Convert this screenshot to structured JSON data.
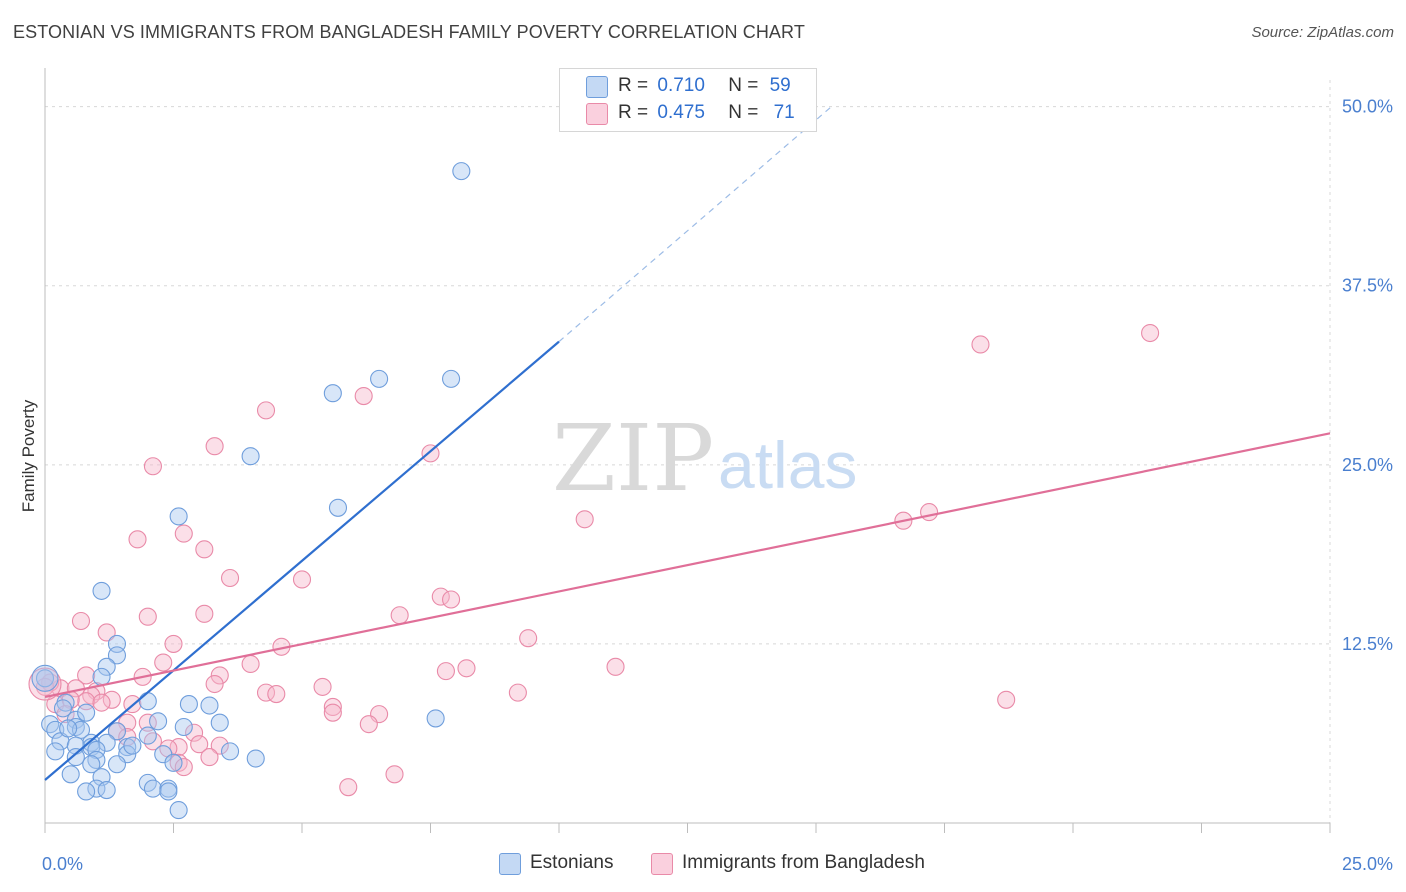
{
  "title": "ESTONIAN VS IMMIGRANTS FROM BANGLADESH FAMILY POVERTY CORRELATION CHART",
  "source": "Source: ZipAtlas.com",
  "watermark": {
    "zip": "ZIP",
    "atlas": "atlas"
  },
  "colors": {
    "blue_fill": "#a9c8f0",
    "blue_stroke": "#6f9edc",
    "blue_line": "#2f6fcf",
    "pink_fill": "#f6b8cb",
    "pink_stroke": "#e98aa8",
    "pink_line": "#e06f98",
    "grid": "#d8d8d8",
    "tick_label": "#4a7fcf"
  },
  "legend": {
    "rows": [
      {
        "r_label": "R =",
        "r_value": "0.710",
        "n_label": "N =",
        "n_value": "59",
        "color": "#a9c8f0"
      },
      {
        "r_label": "R =",
        "r_value": "0.475",
        "n_label": "N =",
        "n_value": "71",
        "color": "#f6b8cb"
      }
    ]
  },
  "bottom_legend": [
    {
      "label": "Estonians",
      "color": "#a9c8f0"
    },
    {
      "label": "Immigrants from Bangladesh",
      "color": "#f6b8cb"
    }
  ],
  "chart_data": {
    "type": "scatter",
    "title": "ESTONIAN VS IMMIGRANTS FROM BANGLADESH FAMILY POVERTY CORRELATION CHART",
    "xlabel": "",
    "ylabel": "Family Poverty",
    "xlim": [
      0,
      25
    ],
    "ylim": [
      0,
      52
    ],
    "x_tick_labels": [
      {
        "value": 0,
        "label": "0.0%"
      },
      {
        "value": 25,
        "label": "25.0%"
      }
    ],
    "y_tick_labels": [
      {
        "value": 12.5,
        "label": "12.5%"
      },
      {
        "value": 25,
        "label": "25.0%"
      },
      {
        "value": 37.5,
        "label": "37.5%"
      },
      {
        "value": 50,
        "label": "50.0%"
      }
    ],
    "grid": true,
    "legend_position": "top-center",
    "series": [
      {
        "name": "Estonians",
        "R": 0.71,
        "N": 59,
        "trendline": {
          "x": [
            0,
            10
          ],
          "y": [
            3,
            33.6
          ],
          "dashed_extension_to": [
            15.3,
            50
          ]
        },
        "points": [
          [
            8.1,
            45.5
          ],
          [
            6.5,
            31
          ],
          [
            5.6,
            30
          ],
          [
            7.9,
            31
          ],
          [
            4,
            25.6
          ],
          [
            5.7,
            22
          ],
          [
            2.6,
            21.4
          ],
          [
            1.1,
            16.2
          ],
          [
            1.4,
            12.5
          ],
          [
            1.4,
            11.7
          ],
          [
            1.2,
            10.9
          ],
          [
            1.1,
            10.2
          ],
          [
            0.0,
            10.1
          ],
          [
            0.4,
            8.4
          ],
          [
            2,
            8.5
          ],
          [
            2.8,
            8.3
          ],
          [
            3.2,
            8.2
          ],
          [
            0.6,
            7.2
          ],
          [
            0.1,
            6.9
          ],
          [
            0.2,
            6.5
          ],
          [
            0.6,
            6.7
          ],
          [
            0.7,
            6.5
          ],
          [
            1.4,
            6.4
          ],
          [
            2,
            6.1
          ],
          [
            2.7,
            6.7
          ],
          [
            3.4,
            7.0
          ],
          [
            2.2,
            7.1
          ],
          [
            0.3,
            5.7
          ],
          [
            0.9,
            5.6
          ],
          [
            1.2,
            5.6
          ],
          [
            1.6,
            5.3
          ],
          [
            0.9,
            5.3
          ],
          [
            0.6,
            5.4
          ],
          [
            1.0,
            5.1
          ],
          [
            0.2,
            5.0
          ],
          [
            1.6,
            4.8
          ],
          [
            2.3,
            4.8
          ],
          [
            0.6,
            4.6
          ],
          [
            1.0,
            4.4
          ],
          [
            0.9,
            4.1
          ],
          [
            1.4,
            4.1
          ],
          [
            2.5,
            4.2
          ],
          [
            3.6,
            5.0
          ],
          [
            4.1,
            4.5
          ],
          [
            0.5,
            3.4
          ],
          [
            1.1,
            3.2
          ],
          [
            2.0,
            2.8
          ],
          [
            2.1,
            2.4
          ],
          [
            1.0,
            2.4
          ],
          [
            1.2,
            2.3
          ],
          [
            2.4,
            2.4
          ],
          [
            0.8,
            2.2
          ],
          [
            2.6,
            0.9
          ],
          [
            7.6,
            7.3
          ],
          [
            2.4,
            2.2
          ],
          [
            0.35,
            8.0
          ],
          [
            1.7,
            5.4
          ],
          [
            0.45,
            6.6
          ],
          [
            0.8,
            7.7
          ]
        ]
      },
      {
        "name": "Immigrants from Bangladesh",
        "R": 0.475,
        "N": 71,
        "trendline": {
          "x": [
            0,
            25
          ],
          "y": [
            8.8,
            27.2
          ]
        },
        "points": [
          [
            21.5,
            34.2
          ],
          [
            18.2,
            33.4
          ],
          [
            6.2,
            29.8
          ],
          [
            4.3,
            28.8
          ],
          [
            3.3,
            26.3
          ],
          [
            7.5,
            25.8
          ],
          [
            2.1,
            24.9
          ],
          [
            10.5,
            21.2
          ],
          [
            16.7,
            21.1
          ],
          [
            17.2,
            21.7
          ],
          [
            2.7,
            20.2
          ],
          [
            1.8,
            19.8
          ],
          [
            3.1,
            19.1
          ],
          [
            3.6,
            17.1
          ],
          [
            5.0,
            17.0
          ],
          [
            7.7,
            15.8
          ],
          [
            7.9,
            15.6
          ],
          [
            3.1,
            14.6
          ],
          [
            2.0,
            14.4
          ],
          [
            0.7,
            14.1
          ],
          [
            6.9,
            14.5
          ],
          [
            1.2,
            13.3
          ],
          [
            9.4,
            12.9
          ],
          [
            2.5,
            12.5
          ],
          [
            4.6,
            12.3
          ],
          [
            2.3,
            11.2
          ],
          [
            4.0,
            11.1
          ],
          [
            8.2,
            10.8
          ],
          [
            7.8,
            10.6
          ],
          [
            11.1,
            10.9
          ],
          [
            0.8,
            10.3
          ],
          [
            3.4,
            10.3
          ],
          [
            1.9,
            10.2
          ],
          [
            3.3,
            9.7
          ],
          [
            5.4,
            9.5
          ],
          [
            4.3,
            9.1
          ],
          [
            4.5,
            9.0
          ],
          [
            9.2,
            9.1
          ],
          [
            0.3,
            9.4
          ],
          [
            0.6,
            9.4
          ],
          [
            1.0,
            9.2
          ],
          [
            0.9,
            8.9
          ],
          [
            1.3,
            8.6
          ],
          [
            0.8,
            8.5
          ],
          [
            0.2,
            8.3
          ],
          [
            0.5,
            8.6
          ],
          [
            1.1,
            8.4
          ],
          [
            1.7,
            8.3
          ],
          [
            5.6,
            8.1
          ],
          [
            5.6,
            7.7
          ],
          [
            6.5,
            7.6
          ],
          [
            6.3,
            6.9
          ],
          [
            18.7,
            8.6
          ],
          [
            1.6,
            7.0
          ],
          [
            2.0,
            7.0
          ],
          [
            1.4,
            6.4
          ],
          [
            2.9,
            6.3
          ],
          [
            1.6,
            6.0
          ],
          [
            2.1,
            5.7
          ],
          [
            3.0,
            5.5
          ],
          [
            3.4,
            5.4
          ],
          [
            2.6,
            5.3
          ],
          [
            2.4,
            5.2
          ],
          [
            3.2,
            4.6
          ],
          [
            2.6,
            4.2
          ],
          [
            2.7,
            3.9
          ],
          [
            6.8,
            3.4
          ],
          [
            5.9,
            2.5
          ],
          [
            0.1,
            9.8
          ],
          [
            0.0,
            9.5
          ],
          [
            0.4,
            7.6
          ]
        ]
      }
    ]
  }
}
